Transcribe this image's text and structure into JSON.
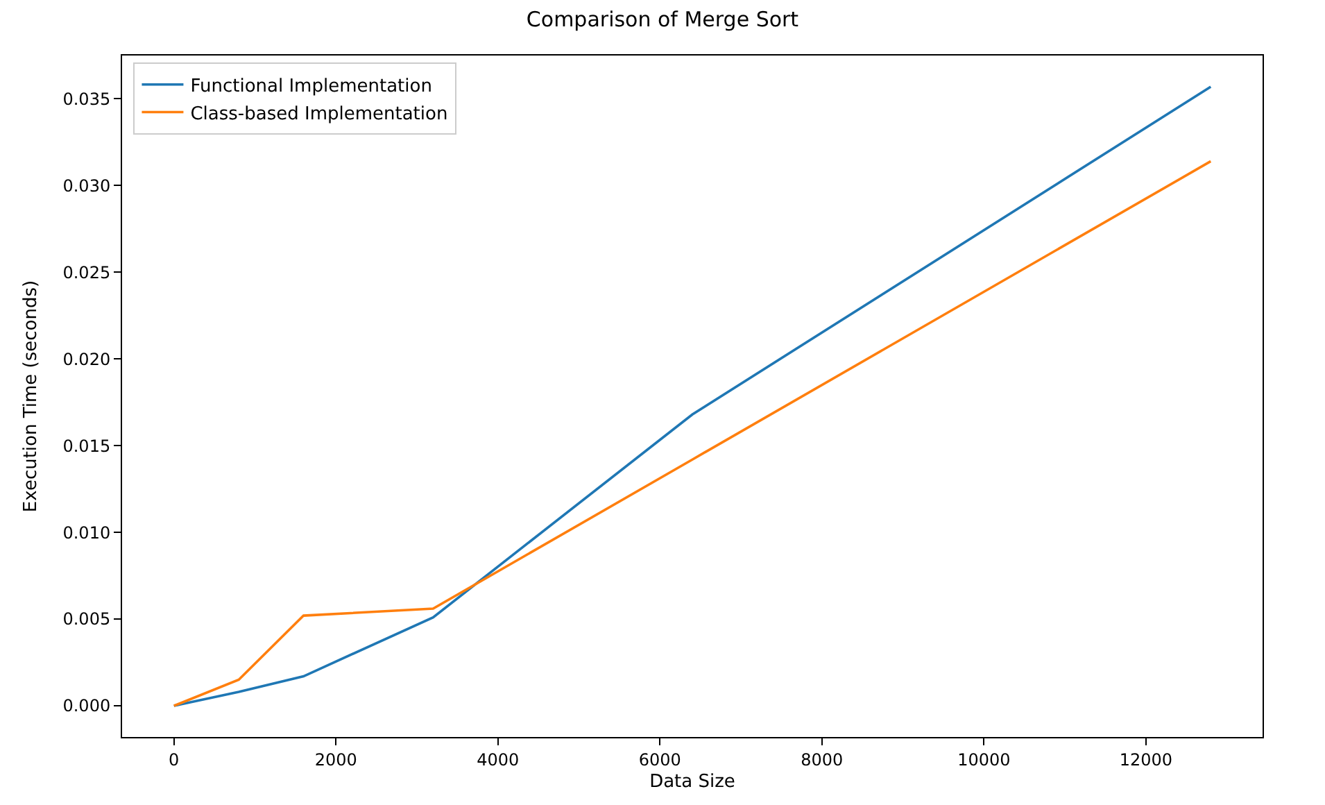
{
  "chart_data": {
    "type": "line",
    "title": "Comparison of Merge Sort",
    "xlabel": "Data Size",
    "ylabel": "Execution Time (seconds)",
    "x": [
      0,
      800,
      1600,
      3200,
      6400,
      12800
    ],
    "series": [
      {
        "name": "Functional Implementation",
        "color": "#1f77b4",
        "values": [
          0,
          0.0008,
          0.0017,
          0.0051,
          0.0168,
          0.0357
        ]
      },
      {
        "name": "Class-based Implementation",
        "color": "#ff7f0e",
        "values": [
          0,
          0.0015,
          0.0052,
          0.0056,
          0.0142,
          0.0314
        ]
      }
    ],
    "xlim": [
      -640,
      13440
    ],
    "xticks": [
      0,
      2000,
      4000,
      6000,
      8000,
      10000,
      12000
    ],
    "ylim": [
      -0.0018,
      0.0375
    ],
    "yticks": [
      {
        "value": 0,
        "label": "0.000"
      },
      {
        "value": 0.005,
        "label": "0.005"
      },
      {
        "value": 0.01,
        "label": "0.010"
      },
      {
        "value": 0.015,
        "label": "0.015"
      },
      {
        "value": 0.02,
        "label": "0.020"
      },
      {
        "value": 0.025,
        "label": "0.025"
      },
      {
        "value": 0.03,
        "label": "0.030"
      },
      {
        "value": 0.035,
        "label": "0.035"
      }
    ],
    "legend": "top left",
    "marker": "none",
    "line_style": "solid"
  }
}
